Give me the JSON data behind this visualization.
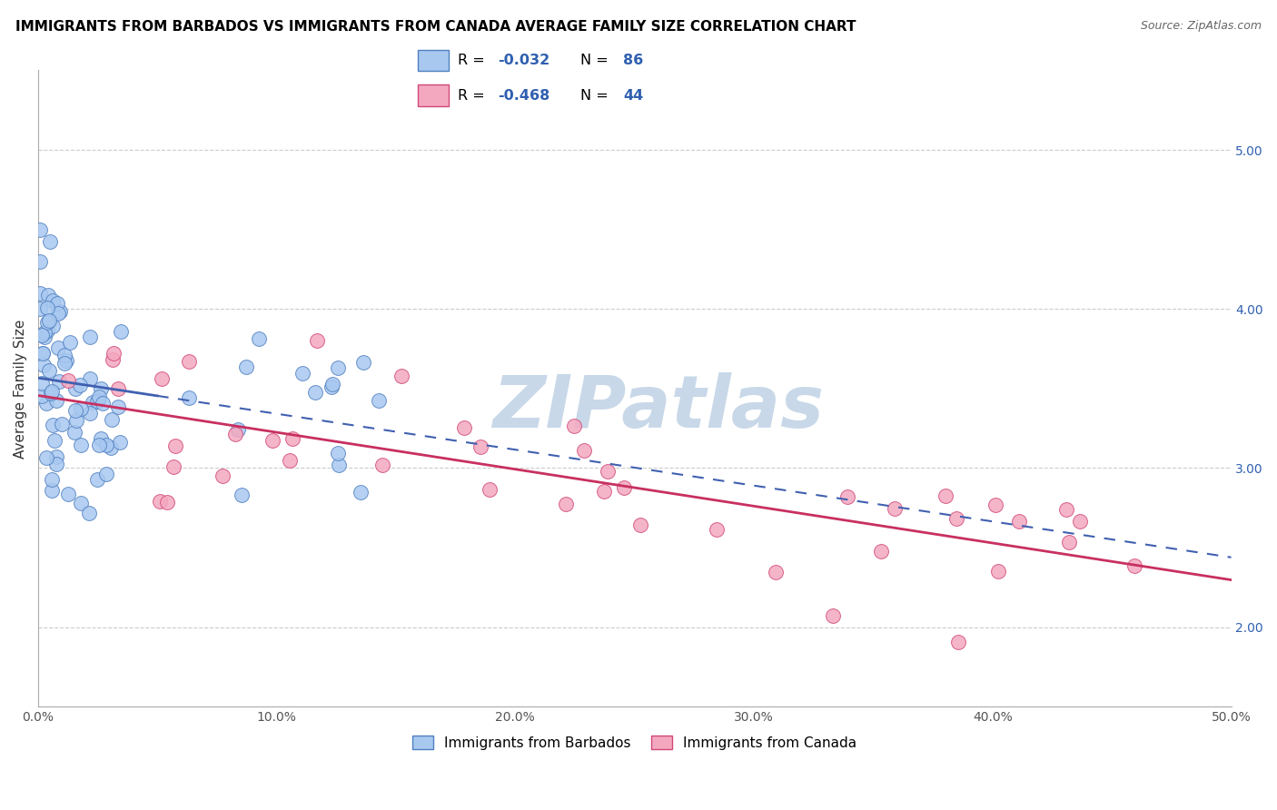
{
  "title": "IMMIGRANTS FROM BARBADOS VS IMMIGRANTS FROM CANADA AVERAGE FAMILY SIZE CORRELATION CHART",
  "source": "Source: ZipAtlas.com",
  "ylabel": "Average Family Size",
  "xlabel": "",
  "xlim": [
    0.0,
    50.0
  ],
  "ylim": [
    1.5,
    5.5
  ],
  "yticks": [
    2.0,
    3.0,
    4.0,
    5.0
  ],
  "xticks": [
    0.0,
    10.0,
    20.0,
    30.0,
    40.0,
    50.0
  ],
  "legend_label1": "Immigrants from Barbados",
  "legend_label2": "Immigrants from Canada",
  "R1": -0.032,
  "N1": 86,
  "R2": -0.468,
  "N2": 44,
  "color1": "#A8C8F0",
  "color2": "#F4A8C0",
  "edge_color1": "#5080C0",
  "edge_color2": "#D04878",
  "line_color1": "#4060B0",
  "line_color2": "#C83060",
  "label_color": "#3060B0",
  "watermark_color": "#C8D8E8",
  "background_color": "#ffffff",
  "grid_color": "#cccccc",
  "title_color": "#000000",
  "title_fontsize": 11,
  "source_fontsize": 9,
  "axis_label_color": "#333333",
  "tick_fontsize": 10,
  "right_tick_color": "#3060B0"
}
